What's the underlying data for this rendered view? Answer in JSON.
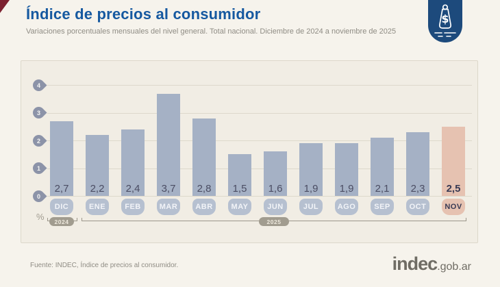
{
  "header": {
    "title": "Índice de precios al consumidor",
    "subtitle": "Variaciones porcentuales mensuales del nivel general. Total nacional. Diciembre de 2024 a noviembre de 2025"
  },
  "badge": {
    "icon": "price-tag-dollar",
    "color": "#1d4a7c"
  },
  "chart_data": {
    "type": "bar",
    "title": "Índice de precios al consumidor",
    "subtitle": "Variaciones porcentuales mensuales del nivel general. Total nacional. Diciembre de 2024 a noviembre de 2025",
    "categories": [
      "DIC",
      "ENE",
      "FEB",
      "MAR",
      "ABR",
      "MAY",
      "JUN",
      "JUL",
      "AGO",
      "SEP",
      "OCT",
      "NOV"
    ],
    "values": [
      2.7,
      2.2,
      2.4,
      3.7,
      2.8,
      1.5,
      1.6,
      1.9,
      1.9,
      2.1,
      2.3,
      2.5
    ],
    "value_labels": [
      "2,7",
      "2,2",
      "2,4",
      "3,7",
      "2,8",
      "1,5",
      "1,6",
      "1,9",
      "1,9",
      "2,1",
      "2,3",
      "2,5"
    ],
    "highlight_index": 11,
    "ylabel": "%",
    "ylim": [
      0,
      4
    ],
    "yticks": [
      "0",
      "1",
      "2",
      "3",
      "4"
    ],
    "grid": true,
    "legend": "none",
    "bar_color": "#a5b1c5",
    "highlight_color": "#e6c2b1",
    "year_groups": [
      {
        "label": "2024",
        "from_month": "DIC",
        "to_month": "DIC"
      },
      {
        "label": "2025",
        "from_month": "ENE",
        "to_month": "NOV"
      }
    ]
  },
  "footer": {
    "source": "Fuente: INDEC, Índice de precios al consumidor.",
    "brand": "indec",
    "brand_suffix": ".gob.ar"
  }
}
